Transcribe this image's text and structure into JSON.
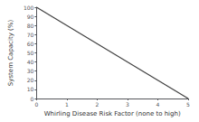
{
  "chart_data": {
    "type": "line",
    "x": [
      0,
      5
    ],
    "values": [
      100,
      0
    ],
    "xlabel": "Whirling Disease Risk Factor (none to high)",
    "ylabel": "System Capacity (%)",
    "xlim": [
      0,
      5
    ],
    "ylim": [
      0,
      100
    ],
    "xticks": [
      0,
      1,
      2,
      3,
      4,
      5
    ],
    "yticks": [
      0,
      10,
      20,
      30,
      40,
      50,
      60,
      70,
      80,
      90,
      100
    ],
    "color": "#404040",
    "line_style": "solid",
    "grid": false
  }
}
